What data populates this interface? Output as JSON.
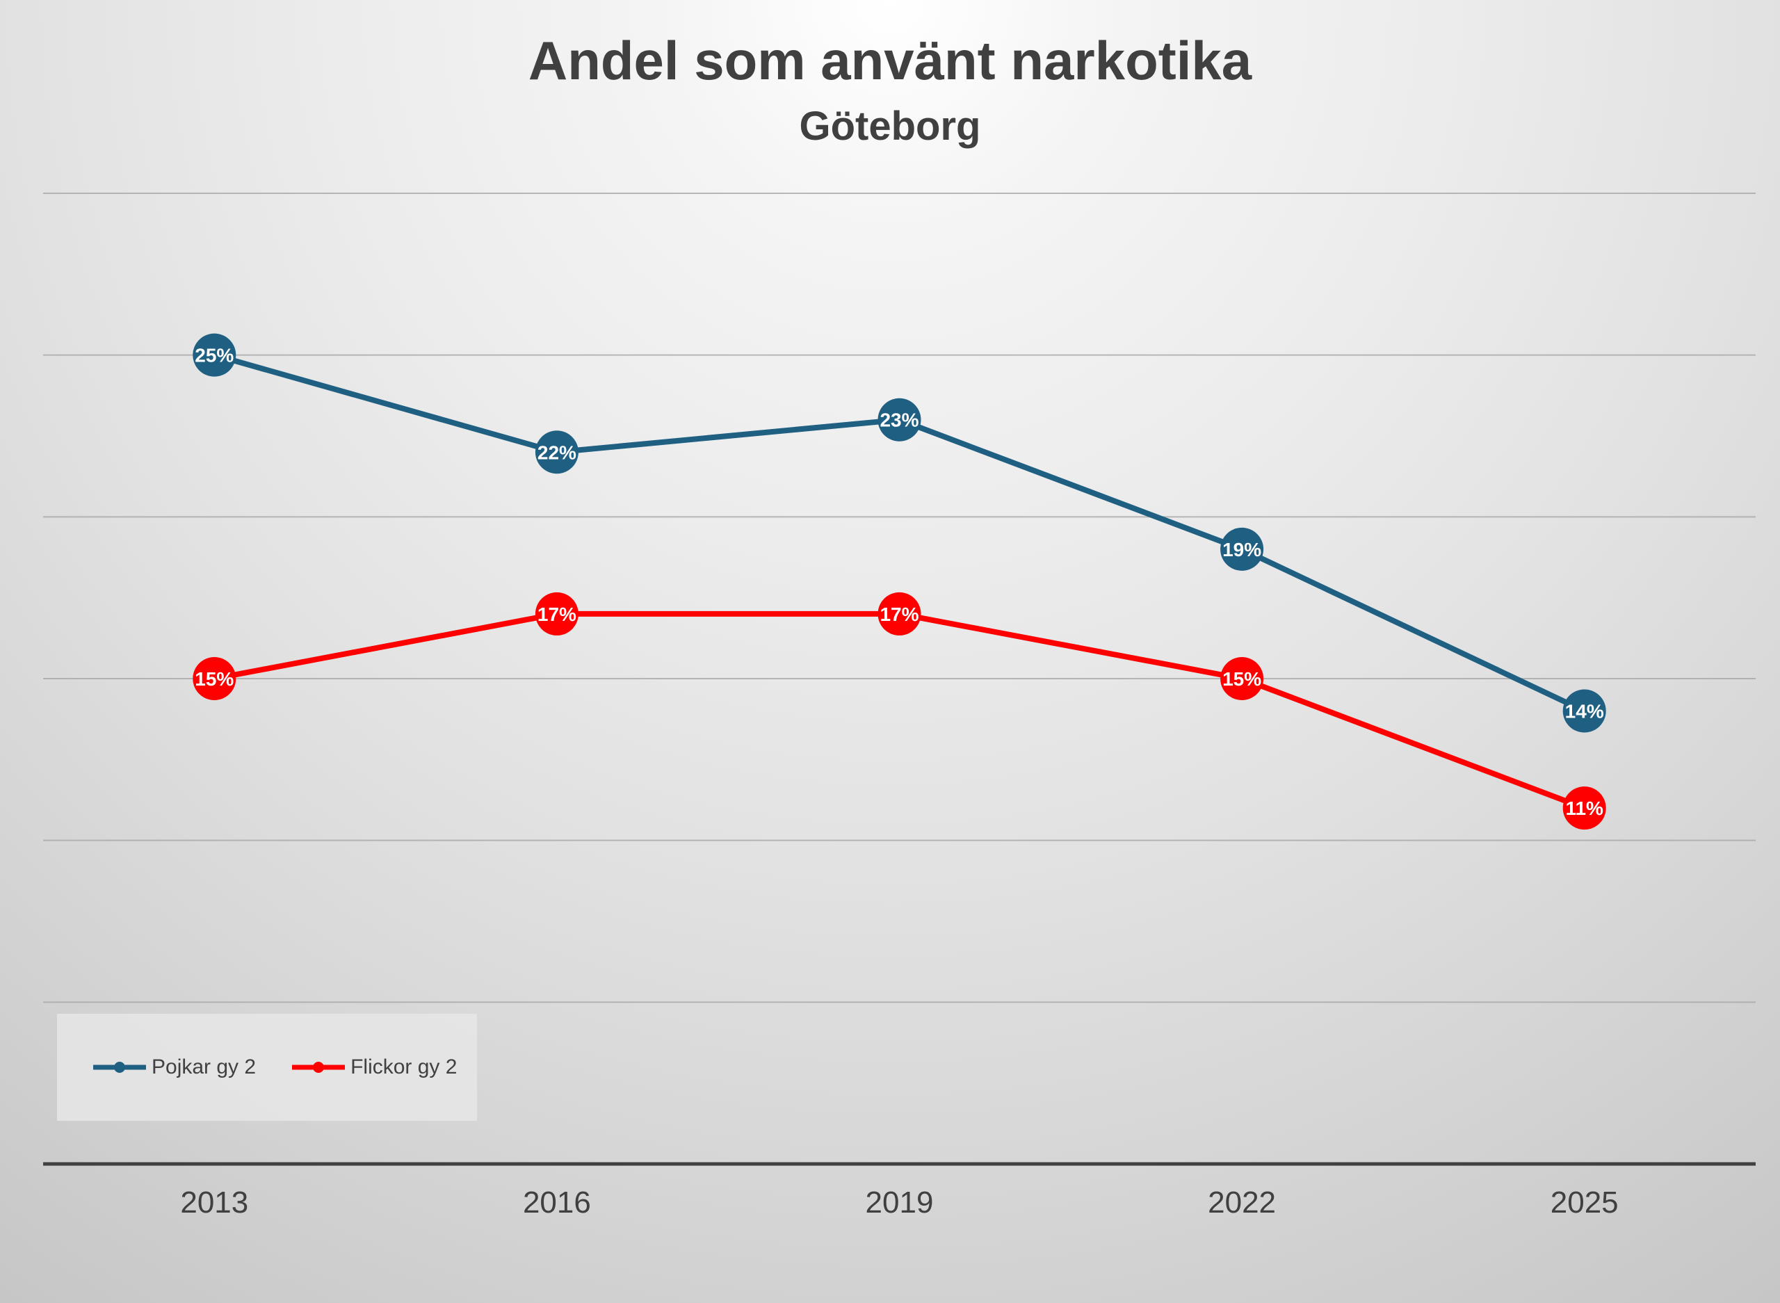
{
  "chart_data": {
    "type": "line",
    "title": "Andel som använt narkotika",
    "subtitle": "Göteborg",
    "categories": [
      "2013",
      "2016",
      "2019",
      "2022",
      "2025"
    ],
    "ylim": [
      0,
      30
    ],
    "y_unit": "%",
    "grid": true,
    "legend_position": "bottom-left",
    "series": [
      {
        "name": "Pojkar gy 2",
        "color": "#1f5f82",
        "values": [
          25,
          22,
          23,
          19,
          14
        ],
        "labels": [
          "25%",
          "22%",
          "23%",
          "19%",
          "14%"
        ]
      },
      {
        "name": "Flickor gy 2",
        "color": "#ff0000",
        "values": [
          15,
          17,
          17,
          15,
          11
        ],
        "labels": [
          "15%",
          "17%",
          "17%",
          "15%",
          "11%"
        ]
      }
    ]
  }
}
